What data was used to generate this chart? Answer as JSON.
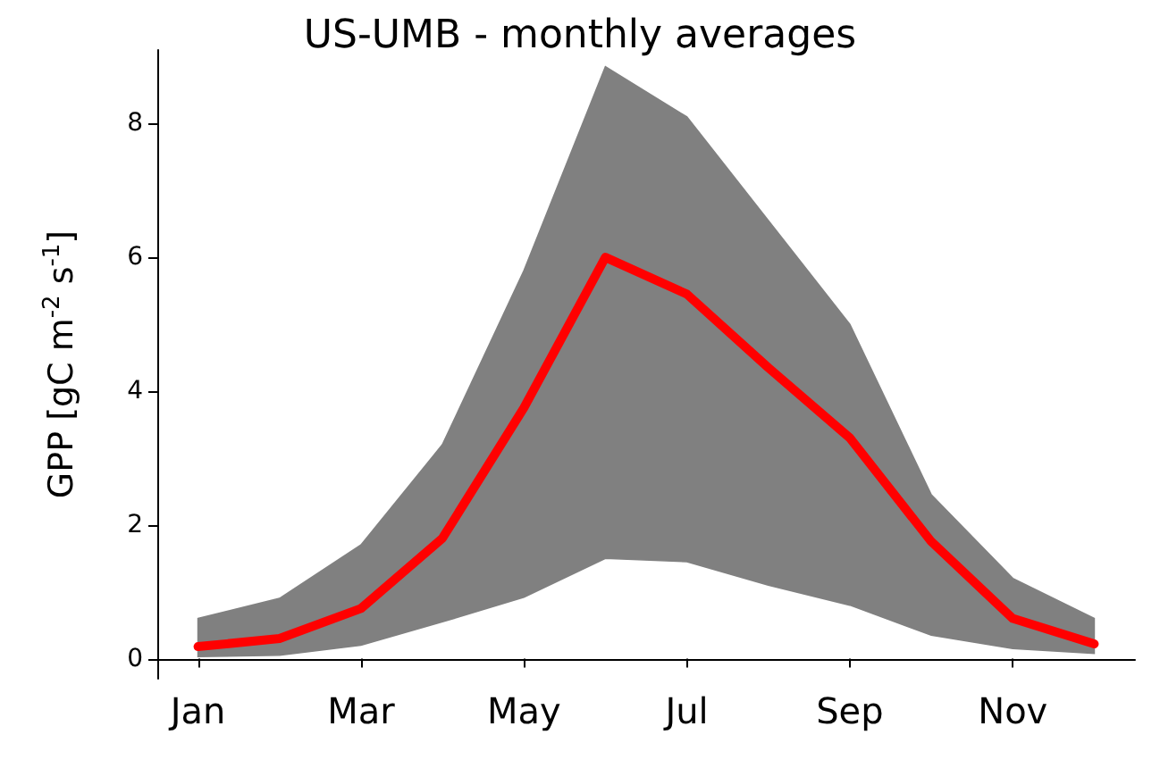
{
  "chart_data": {
    "type": "line",
    "title": "US-UMB - monthly averages",
    "ylabel": "GPP [gC m$^{-2}$ s$^{-1}$]",
    "categories": [
      "Jan",
      null,
      "Mar",
      null,
      "May",
      null,
      "Jul",
      null,
      "Sep",
      null,
      "Nov",
      null
    ],
    "series": [
      {
        "color": "#ff0000",
        "values": [
          0.18,
          0.3,
          0.75,
          1.8,
          3.75,
          6.0,
          5.45,
          4.35,
          3.3,
          1.75,
          0.6,
          0.22
        ],
        "lower": [
          0.03,
          0.05,
          0.2,
          0.55,
          0.92,
          1.5,
          1.45,
          1.1,
          0.8,
          0.35,
          0.15,
          0.08
        ],
        "upper": [
          0.6,
          0.9,
          1.7,
          3.2,
          5.8,
          8.85,
          8.1,
          6.55,
          5.0,
          2.45,
          1.2,
          0.6
        ]
      }
    ],
    "ylim": [
      -0.3,
      9.1
    ],
    "yticks": [
      0,
      2,
      4,
      6,
      8
    ],
    "grid": false,
    "marker": "none",
    "line_style": "solid"
  }
}
